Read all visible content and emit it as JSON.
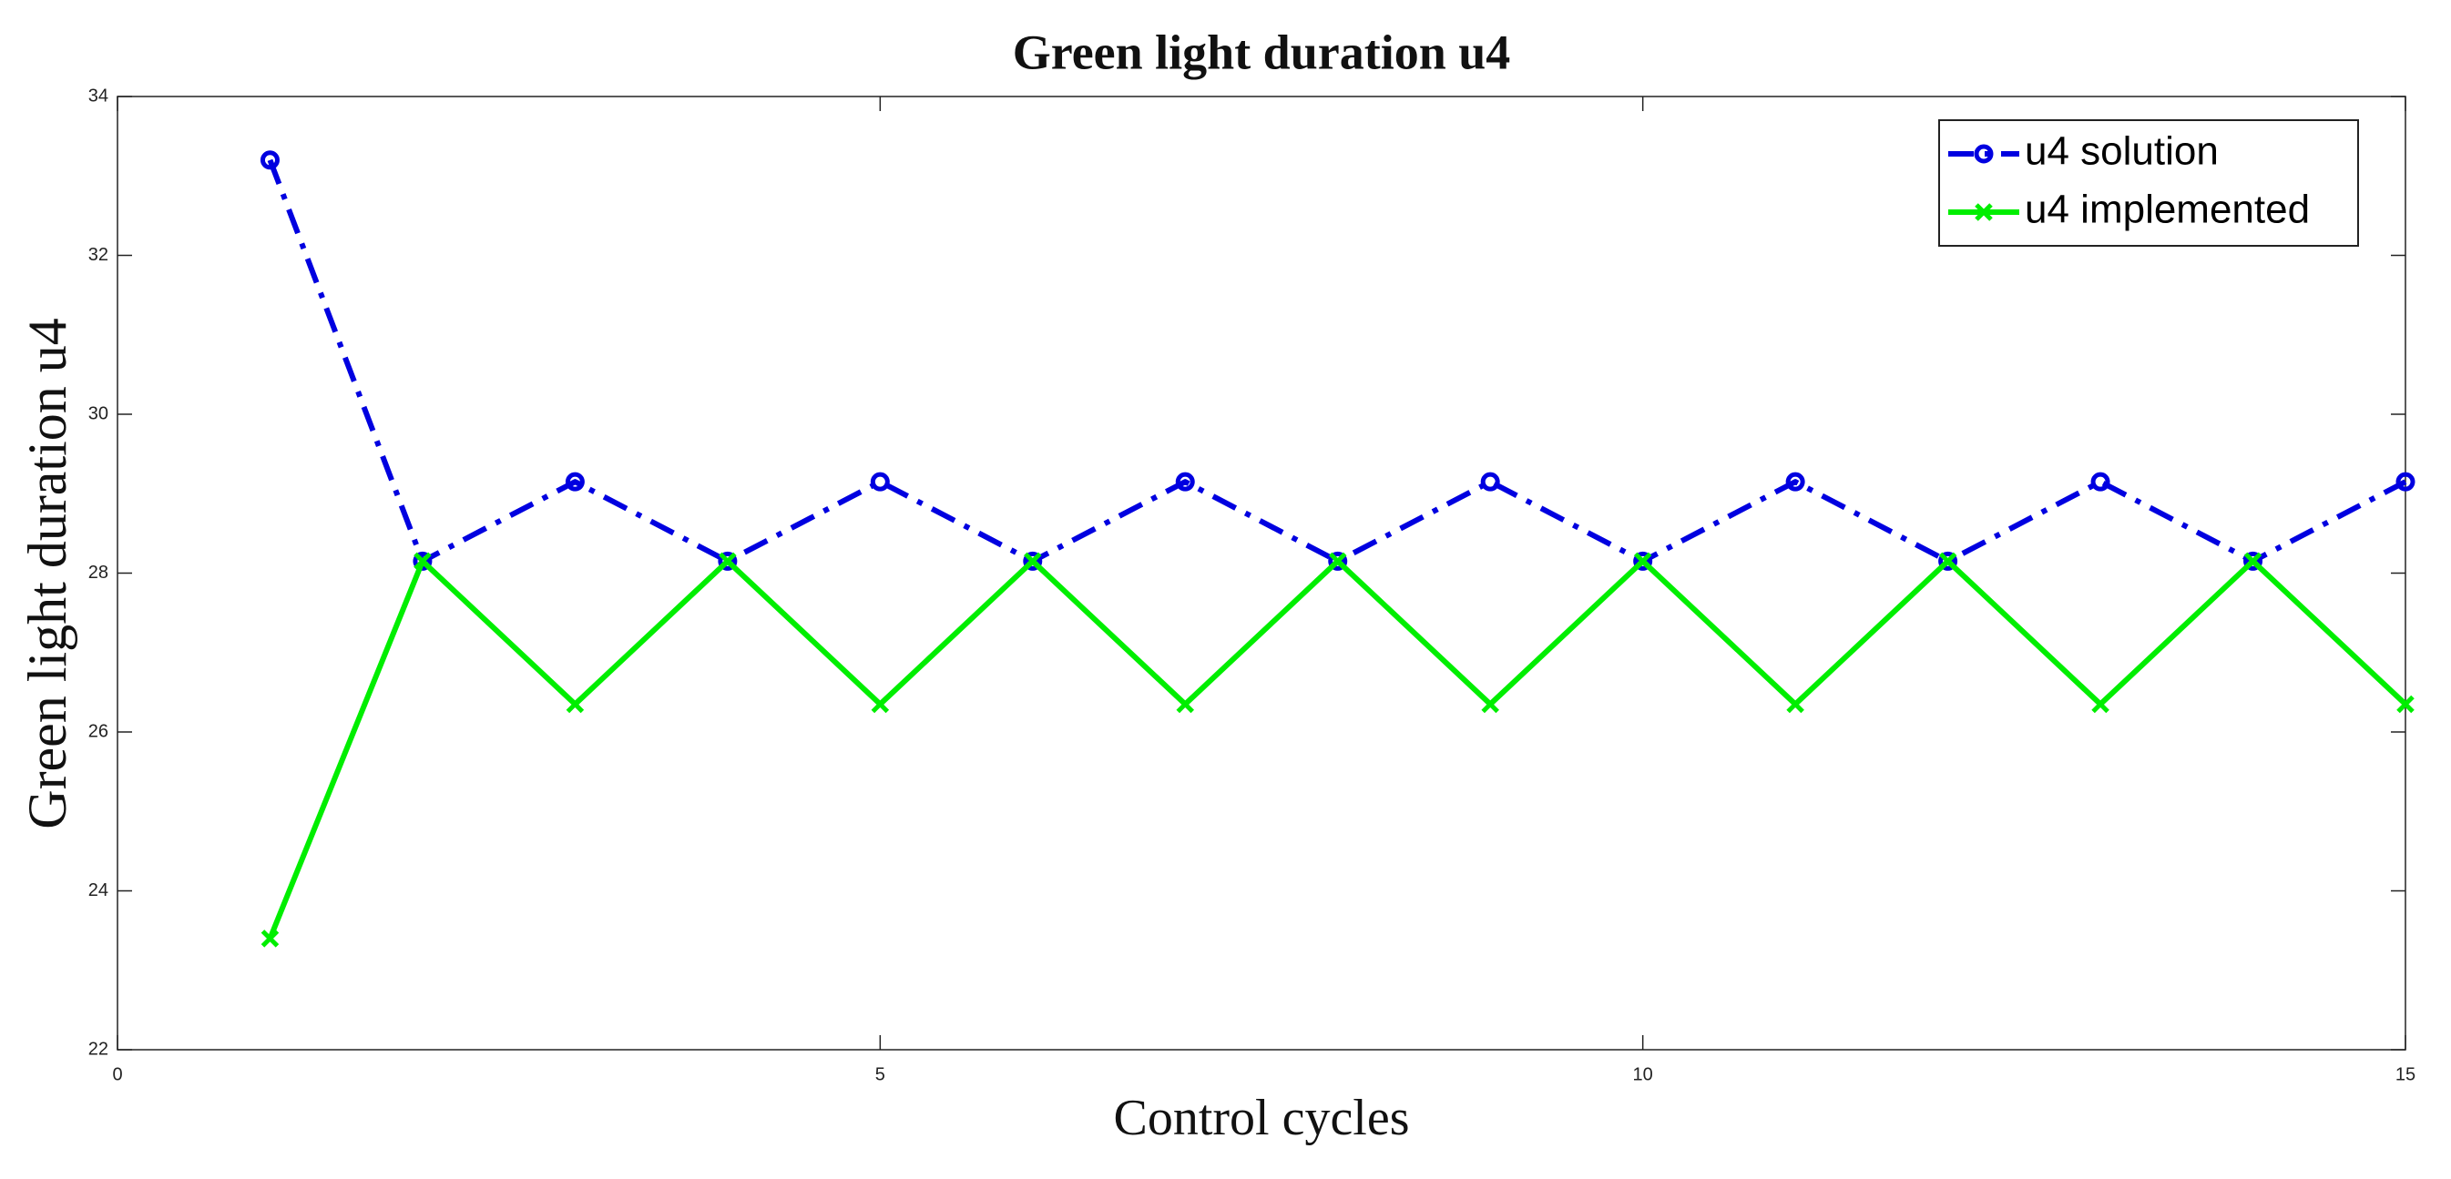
{
  "chart_data": {
    "type": "line",
    "title": "Green light duration u4",
    "xlabel": "Control cycles",
    "ylabel": "Green light duration u4",
    "x": [
      1,
      2,
      3,
      4,
      5,
      6,
      7,
      8,
      9,
      10,
      11,
      12,
      13,
      14,
      15
    ],
    "series": [
      {
        "name": "u4 solution",
        "color": "#0000e0",
        "linestyle": "dashdot",
        "marker": "o",
        "values": [
          33.2,
          28.15,
          29.15,
          28.15,
          29.15,
          28.15,
          29.15,
          28.15,
          29.15,
          28.15,
          29.15,
          28.15,
          29.15,
          28.15,
          29.15
        ]
      },
      {
        "name": "u4 implemented",
        "color": "#00ee00",
        "linestyle": "solid",
        "marker": "x",
        "values": [
          23.4,
          28.15,
          26.35,
          28.15,
          26.35,
          28.15,
          26.35,
          28.15,
          26.35,
          28.15,
          26.35,
          28.15,
          26.35,
          28.15,
          26.35
        ]
      }
    ],
    "xlim": [
      0,
      15
    ],
    "xticks": [
      0,
      5,
      10,
      15
    ],
    "ylim": [
      22,
      34
    ],
    "yticks": [
      22,
      24,
      26,
      28,
      30,
      32,
      34
    ],
    "legend": "upper right"
  }
}
